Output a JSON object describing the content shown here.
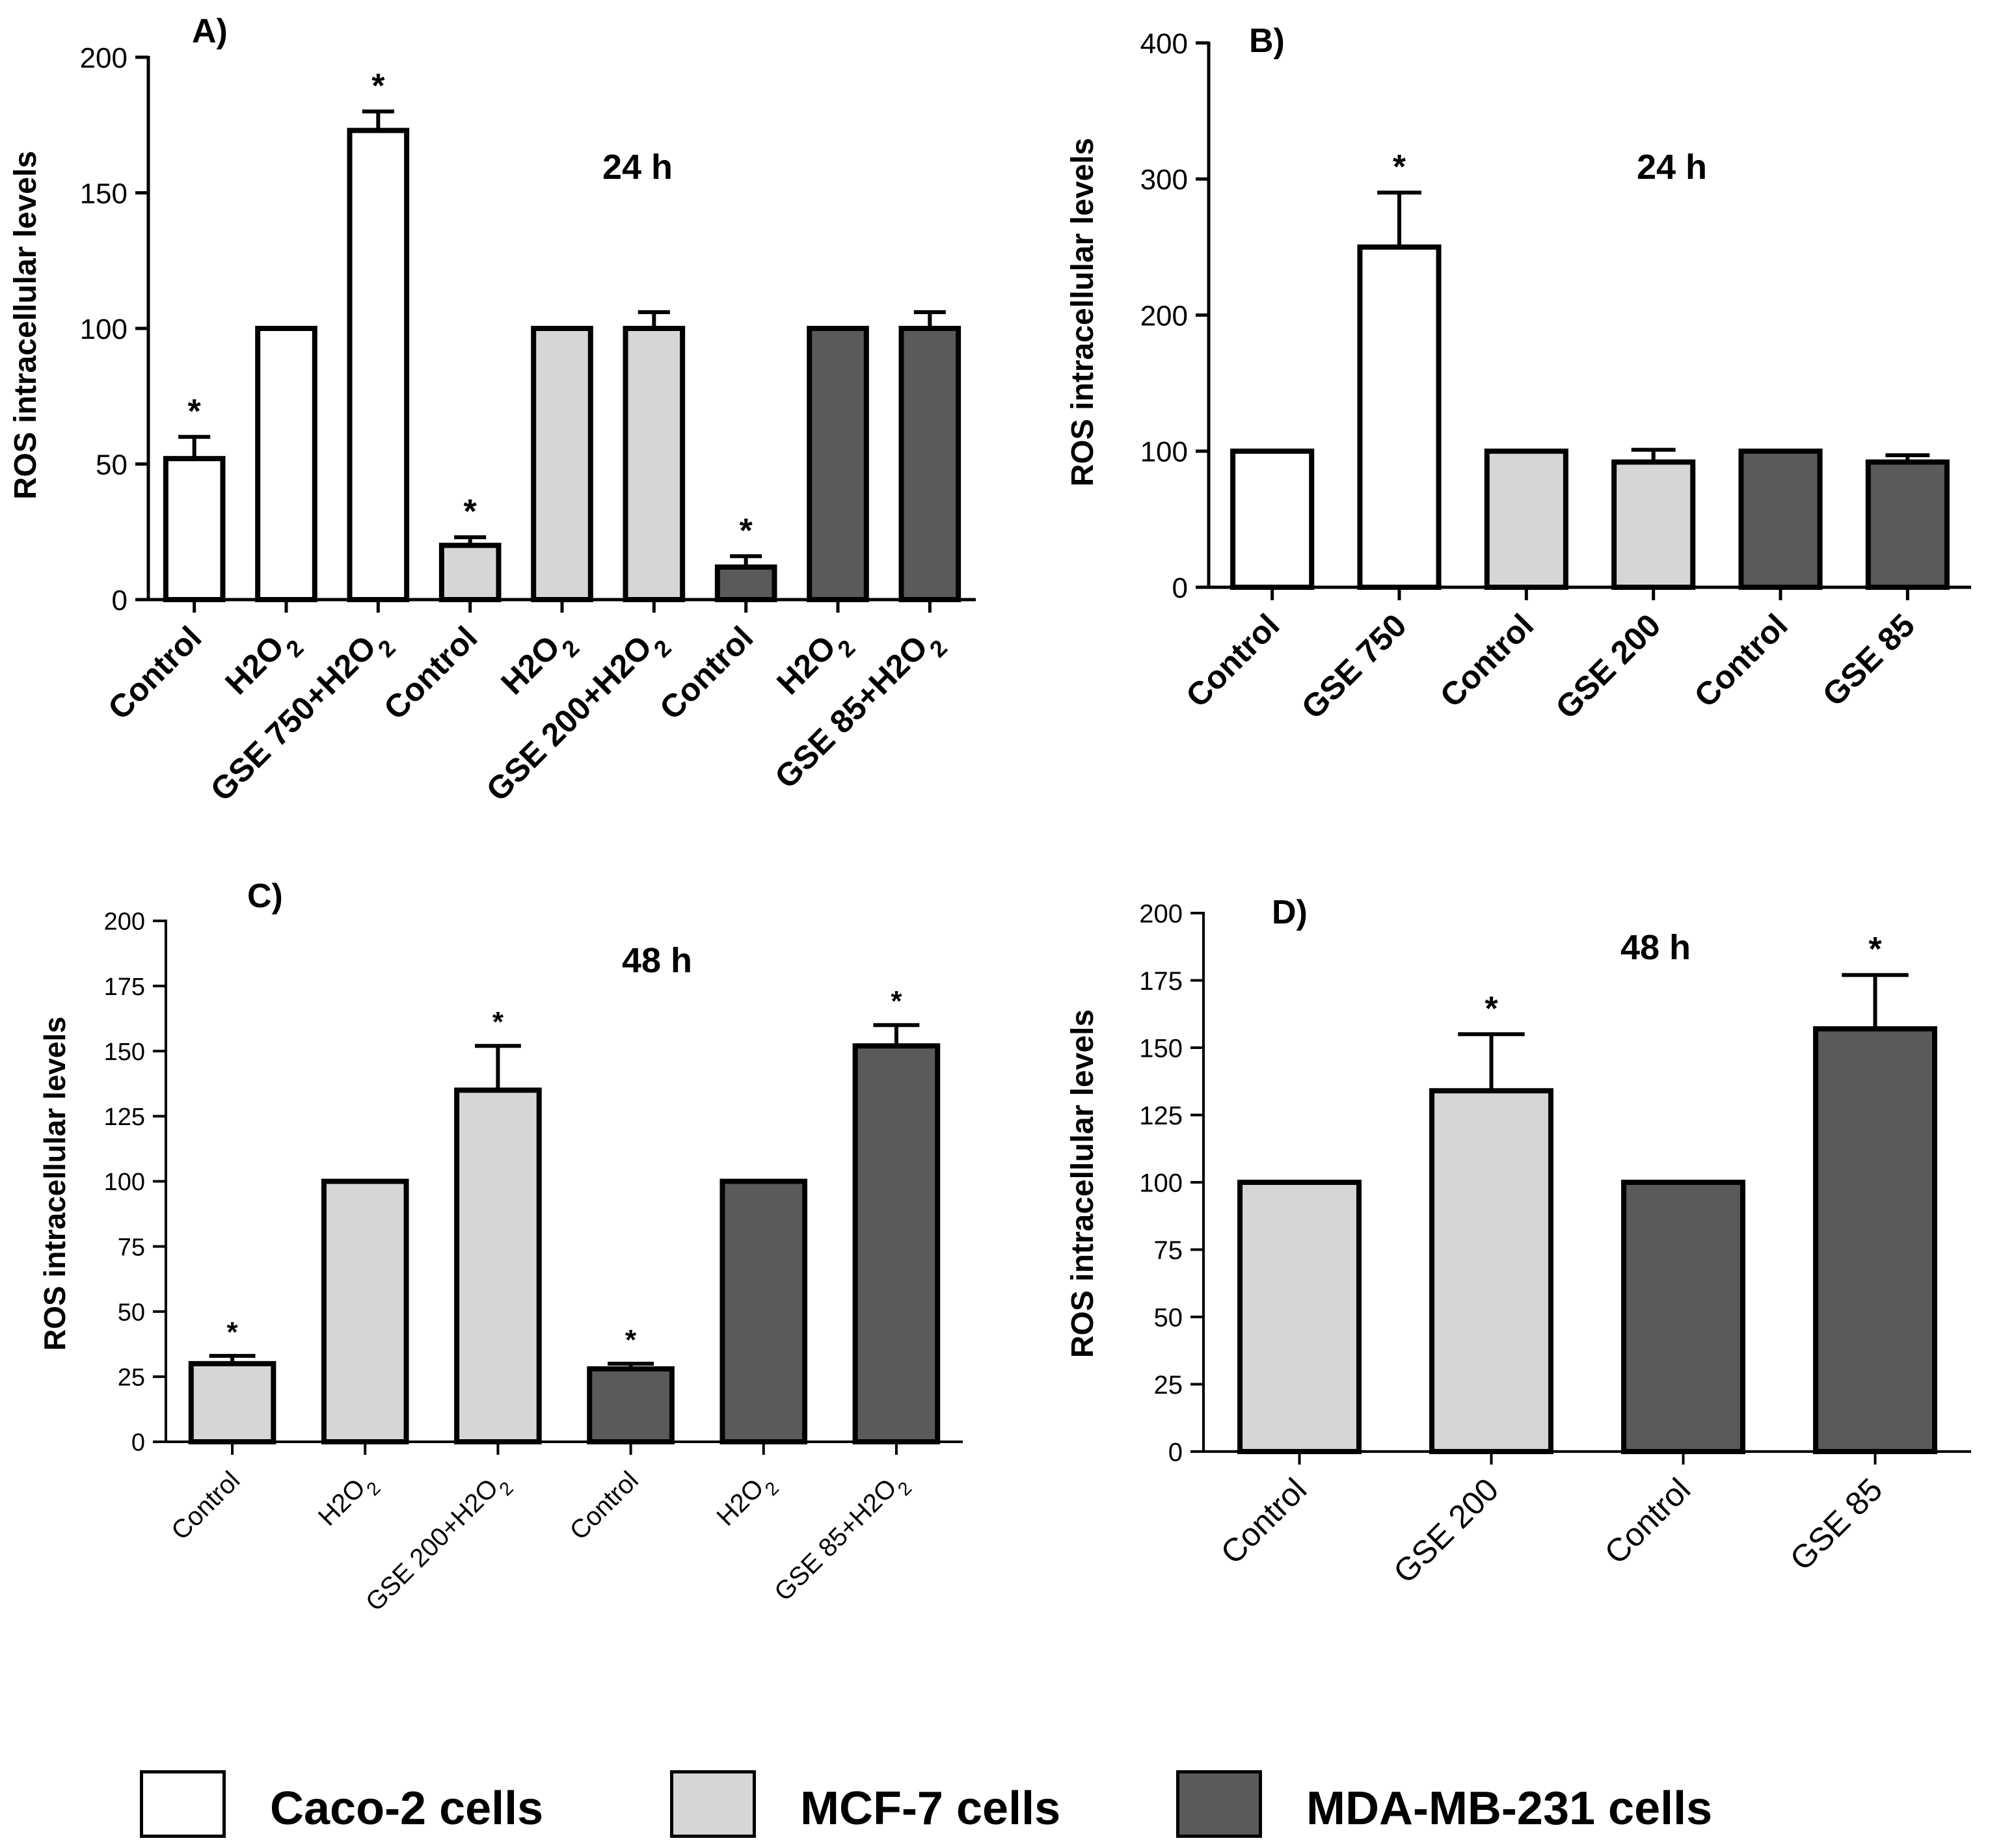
{
  "colors": {
    "caco2": "#ffffff",
    "mcf7": "#d6d6d6",
    "mda": "#5a5a5a",
    "axis": "#000000"
  },
  "legend": {
    "items": [
      {
        "label": "Caco-2 cells",
        "group": "caco2"
      },
      {
        "label": "MCF-7 cells",
        "group": "mcf7"
      },
      {
        "label": "MDA-MB-231 cells",
        "group": "mda"
      }
    ]
  },
  "chart_data": [
    {
      "type": "bar",
      "panel_label": "A)",
      "time_label": "24 h",
      "ylabel": "ROS intracellular levels",
      "ylim": [
        0,
        200
      ],
      "yticks": [
        "0",
        "50",
        "100",
        "150",
        "200"
      ],
      "categories": [
        {
          "label": "Control",
          "value": 52,
          "error": 8,
          "sig": "*",
          "group": "caco2"
        },
        {
          "label": "H2O2",
          "value": 100,
          "error": 0,
          "sig": "",
          "group": "caco2"
        },
        {
          "label": "GSE 750+H2O2",
          "value": 173,
          "error": 7,
          "sig": "*",
          "group": "caco2"
        },
        {
          "label": "Control",
          "value": 20,
          "error": 3,
          "sig": "*",
          "group": "mcf7"
        },
        {
          "label": "H2O2",
          "value": 100,
          "error": 0,
          "sig": "",
          "group": "mcf7"
        },
        {
          "label": "GSE 200+H2O2",
          "value": 100,
          "error": 6,
          "sig": "",
          "group": "mcf7"
        },
        {
          "label": "Control",
          "value": 12,
          "error": 4,
          "sig": "*",
          "group": "mda"
        },
        {
          "label": "H2O2",
          "value": 100,
          "error": 0,
          "sig": "",
          "group": "mda"
        },
        {
          "label": "GSE 85+H2O2",
          "value": 100,
          "error": 6,
          "sig": "",
          "group": "mda"
        }
      ]
    },
    {
      "type": "bar",
      "panel_label": "B)",
      "time_label": "24 h",
      "ylabel": "ROS intracellular levels",
      "ylim": [
        0,
        400
      ],
      "yticks": [
        "0",
        "100",
        "200",
        "300",
        "400"
      ],
      "categories": [
        {
          "label": "Control",
          "value": 100,
          "error": 0,
          "sig": "",
          "group": "caco2"
        },
        {
          "label": "GSE 750",
          "value": 250,
          "error": 40,
          "sig": "*",
          "group": "caco2"
        },
        {
          "label": "Control",
          "value": 100,
          "error": 0,
          "sig": "",
          "group": "mcf7"
        },
        {
          "label": "GSE 200",
          "value": 92,
          "error": 9,
          "sig": "",
          "group": "mcf7"
        },
        {
          "label": "Control",
          "value": 100,
          "error": 0,
          "sig": "",
          "group": "mda"
        },
        {
          "label": "GSE 85",
          "value": 92,
          "error": 5,
          "sig": "",
          "group": "mda"
        }
      ]
    },
    {
      "type": "bar",
      "panel_label": "C)",
      "time_label": "48 h",
      "ylabel": "ROS intracellular levels",
      "ylim": [
        0,
        200
      ],
      "yticks": [
        "0",
        "25",
        "50",
        "75",
        "100",
        "125",
        "150",
        "175",
        "200"
      ],
      "categories": [
        {
          "label": "Control",
          "value": 30,
          "error": 3,
          "sig": "*",
          "group": "mcf7"
        },
        {
          "label": "H2O2",
          "value": 100,
          "error": 0,
          "sig": "",
          "group": "mcf7"
        },
        {
          "label": "GSE 200+H2O2",
          "value": 135,
          "error": 17,
          "sig": "*",
          "group": "mcf7"
        },
        {
          "label": "Control",
          "value": 28,
          "error": 2,
          "sig": "*",
          "group": "mda"
        },
        {
          "label": "H2O2",
          "value": 100,
          "error": 0,
          "sig": "",
          "group": "mda"
        },
        {
          "label": "GSE 85+H2O2",
          "value": 152,
          "error": 8,
          "sig": "*",
          "group": "mda"
        }
      ]
    },
    {
      "type": "bar",
      "panel_label": "D)",
      "time_label": "48 h",
      "ylabel": "ROS intracellular levels",
      "ylim": [
        0,
        200
      ],
      "yticks": [
        "0",
        "25",
        "50",
        "75",
        "100",
        "125",
        "150",
        "175",
        "200"
      ],
      "categories": [
        {
          "label": "Control",
          "value": 100,
          "error": 0,
          "sig": "",
          "group": "mcf7"
        },
        {
          "label": "GSE 200",
          "value": 134,
          "error": 21,
          "sig": "*",
          "group": "mcf7"
        },
        {
          "label": "Control",
          "value": 100,
          "error": 0,
          "sig": "",
          "group": "mda"
        },
        {
          "label": "GSE 85",
          "value": 157,
          "error": 20,
          "sig": "*",
          "group": "mda"
        }
      ]
    }
  ]
}
